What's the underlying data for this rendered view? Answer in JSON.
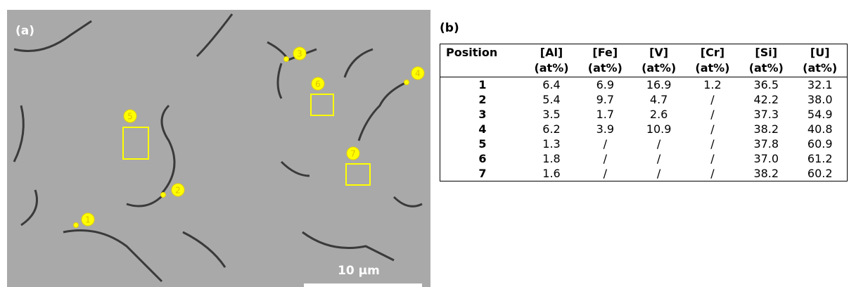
{
  "panel_a": {
    "label": "(a)",
    "scale_bar": "10 µm",
    "markers": [
      {
        "label": "1"
      },
      {
        "label": "2"
      },
      {
        "label": "3"
      },
      {
        "label": "4"
      },
      {
        "label": "5"
      },
      {
        "label": "6"
      },
      {
        "label": "7"
      }
    ]
  },
  "panel_b": {
    "label": "(b)",
    "table": {
      "header": [
        [
          "Position"
        ],
        [
          "[Al]",
          "(at%)"
        ],
        [
          "[Fe]",
          "(at%)"
        ],
        [
          "[V]",
          "(at%)"
        ],
        [
          "[Cr]",
          "(at%)"
        ],
        [
          "[Si]",
          "(at%)"
        ],
        [
          "[U]",
          "(at%)"
        ]
      ],
      "rows": [
        [
          "1",
          "6.4",
          "6.9",
          "16.9",
          "1.2",
          "36.5",
          "32.1"
        ],
        [
          "2",
          "5.4",
          "9.7",
          "4.7",
          "/",
          "42.2",
          "38.0"
        ],
        [
          "3",
          "3.5",
          "1.7",
          "2.6",
          "/",
          "37.3",
          "54.9"
        ],
        [
          "4",
          "6.2",
          "3.9",
          "10.9",
          "/",
          "38.2",
          "40.8"
        ],
        [
          "5",
          "1.3",
          "/",
          "/",
          "/",
          "37.8",
          "60.9"
        ],
        [
          "6",
          "1.8",
          "/",
          "/",
          "/",
          "37.0",
          "61.2"
        ],
        [
          "7",
          "1.6",
          "/",
          "/",
          "/",
          "38.2",
          "60.2"
        ]
      ]
    }
  }
}
